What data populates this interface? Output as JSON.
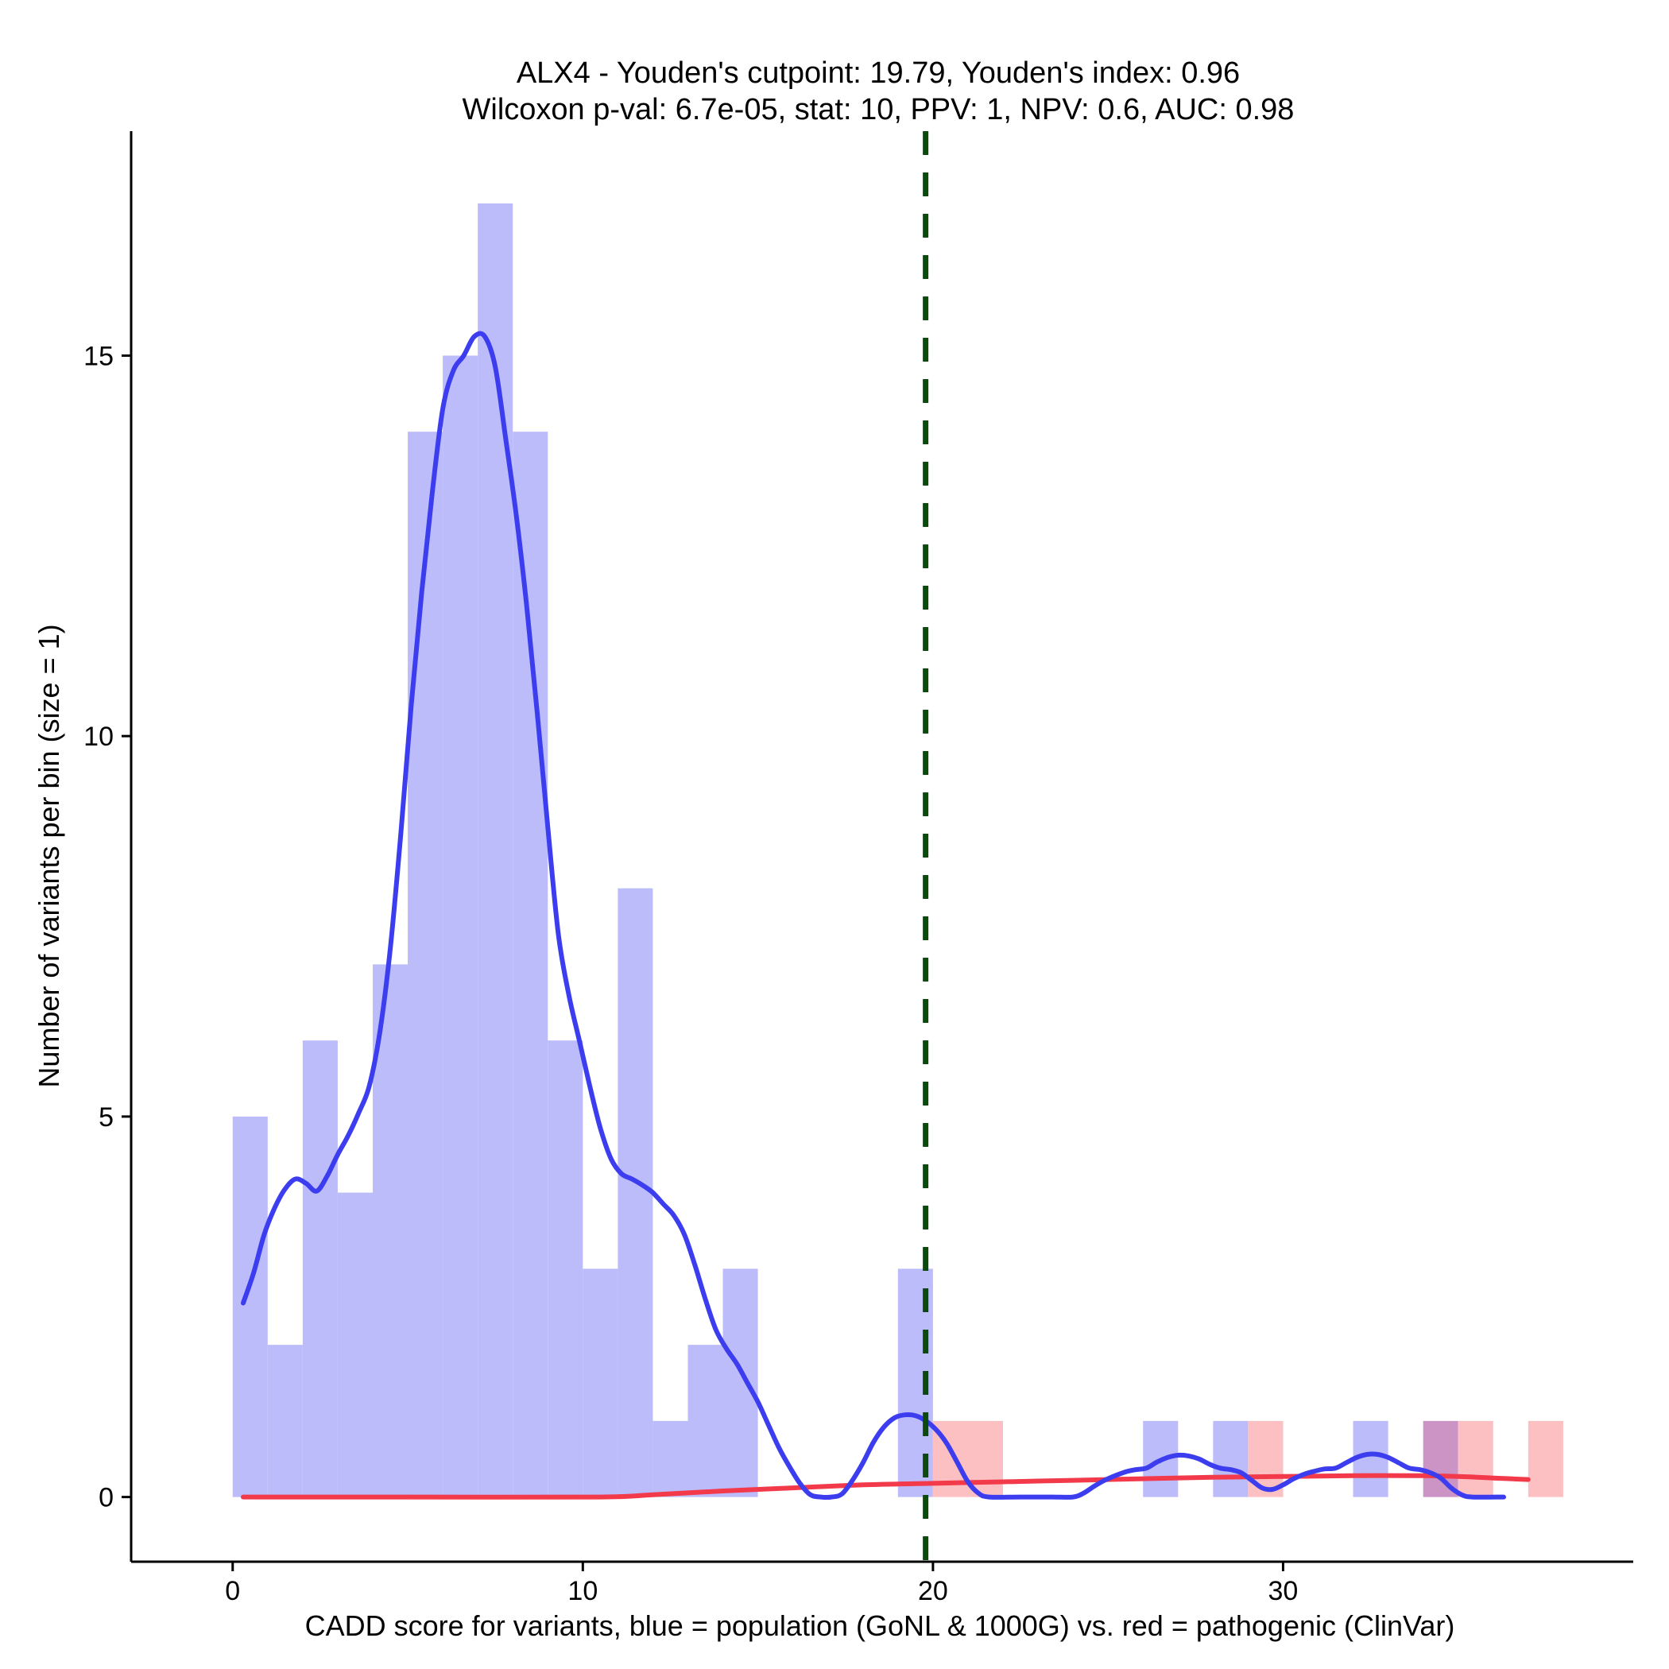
{
  "colors": {
    "population_fill": "#bcbcfb",
    "pathogenic_fill": "#fcc0c2",
    "overlap_fill": "#cc94c5",
    "population_line": "#3d3df0",
    "pathogenic_line": "#f23a4b",
    "cutpoint_line": "#0a4a0a"
  },
  "chart_data": {
    "type": "histogram",
    "title": "ALX4 - Youden's cutpoint: 19.79, Youden's index: 0.96",
    "subtitle": "Wilcoxon p-val: 6.7e-05, stat: 10, PPV: 1, NPV: 0.6, AUC: 0.98",
    "xlabel": "CADD score for variants, blue = population (GoNL & 1000G) vs. red = pathogenic (ClinVar)",
    "ylabel": "Number of variants per bin (size = 1)",
    "xlim": [
      -2.9,
      40.0
    ],
    "ylim": [
      -0.85,
      17.95
    ],
    "bin_size": 1,
    "x_ticks": [
      0,
      10,
      20,
      30
    ],
    "x_tick_labels": [
      "0",
      "10",
      "20",
      "30"
    ],
    "y_ticks": [
      0,
      5,
      10,
      15
    ],
    "y_tick_labels": [
      "0",
      "5",
      "10",
      "15"
    ],
    "cutpoint": 19.79,
    "series": [
      {
        "name": "population (GoNL & 1000G)",
        "bins": [
          {
            "x": 0,
            "count": 5
          },
          {
            "x": 1,
            "count": 2
          },
          {
            "x": 2,
            "count": 6
          },
          {
            "x": 3,
            "count": 4
          },
          {
            "x": 4,
            "count": 7
          },
          {
            "x": 5,
            "count": 14
          },
          {
            "x": 6,
            "count": 15
          },
          {
            "x": 7,
            "count": 17
          },
          {
            "x": 8,
            "count": 14
          },
          {
            "x": 9,
            "count": 6
          },
          {
            "x": 10,
            "count": 3
          },
          {
            "x": 11,
            "count": 8
          },
          {
            "x": 12,
            "count": 1
          },
          {
            "x": 13,
            "count": 2
          },
          {
            "x": 14,
            "count": 3
          },
          {
            "x": 19,
            "count": 3
          },
          {
            "x": 26,
            "count": 1
          },
          {
            "x": 28,
            "count": 1
          },
          {
            "x": 32,
            "count": 1
          },
          {
            "x": 34,
            "count": 1
          }
        ],
        "density": [
          [
            0.3,
            2.55
          ],
          [
            0.6,
            2.95
          ],
          [
            0.9,
            3.45
          ],
          [
            1.2,
            3.8
          ],
          [
            1.5,
            4.05
          ],
          [
            1.8,
            4.18
          ],
          [
            2.1,
            4.12
          ],
          [
            2.4,
            4.02
          ],
          [
            2.7,
            4.22
          ],
          [
            3.0,
            4.5
          ],
          [
            3.3,
            4.75
          ],
          [
            3.6,
            5.05
          ],
          [
            3.9,
            5.4
          ],
          [
            4.2,
            6.1
          ],
          [
            4.5,
            7.2
          ],
          [
            4.8,
            8.7
          ],
          [
            5.1,
            10.4
          ],
          [
            5.4,
            11.9
          ],
          [
            5.7,
            13.2
          ],
          [
            6.0,
            14.3
          ],
          [
            6.3,
            14.8
          ],
          [
            6.6,
            15.0
          ],
          [
            6.9,
            15.25
          ],
          [
            7.2,
            15.25
          ],
          [
            7.5,
            14.85
          ],
          [
            7.8,
            13.9
          ],
          [
            8.1,
            12.9
          ],
          [
            8.4,
            11.7
          ],
          [
            8.7,
            10.3
          ],
          [
            9.0,
            8.8
          ],
          [
            9.3,
            7.4
          ],
          [
            9.6,
            6.6
          ],
          [
            9.9,
            6.0
          ],
          [
            10.2,
            5.4
          ],
          [
            10.5,
            4.85
          ],
          [
            10.8,
            4.45
          ],
          [
            11.1,
            4.25
          ],
          [
            11.4,
            4.18
          ],
          [
            11.7,
            4.1
          ],
          [
            12.0,
            4.0
          ],
          [
            12.3,
            3.85
          ],
          [
            12.6,
            3.7
          ],
          [
            12.9,
            3.45
          ],
          [
            13.2,
            3.05
          ],
          [
            13.5,
            2.6
          ],
          [
            13.8,
            2.2
          ],
          [
            14.1,
            1.95
          ],
          [
            14.4,
            1.75
          ],
          [
            14.7,
            1.5
          ],
          [
            15.0,
            1.25
          ],
          [
            15.3,
            0.95
          ],
          [
            15.6,
            0.65
          ],
          [
            15.9,
            0.4
          ],
          [
            16.2,
            0.18
          ],
          [
            16.5,
            0.03
          ],
          [
            16.8,
            0.0
          ],
          [
            17.1,
            0.0
          ],
          [
            17.4,
            0.04
          ],
          [
            17.7,
            0.22
          ],
          [
            18.0,
            0.45
          ],
          [
            18.3,
            0.72
          ],
          [
            18.6,
            0.92
          ],
          [
            18.9,
            1.04
          ],
          [
            19.2,
            1.08
          ],
          [
            19.5,
            1.07
          ],
          [
            19.8,
            1.0
          ],
          [
            20.1,
            0.88
          ],
          [
            20.4,
            0.7
          ],
          [
            20.7,
            0.45
          ],
          [
            21.0,
            0.2
          ],
          [
            21.3,
            0.05
          ],
          [
            21.6,
            0.0
          ],
          [
            22.5,
            0.0
          ],
          [
            23.4,
            0.0
          ],
          [
            24.0,
            0.0
          ],
          [
            24.3,
            0.05
          ],
          [
            24.6,
            0.14
          ],
          [
            24.9,
            0.22
          ],
          [
            25.2,
            0.28
          ],
          [
            25.5,
            0.33
          ],
          [
            25.8,
            0.36
          ],
          [
            26.1,
            0.38
          ],
          [
            26.4,
            0.46
          ],
          [
            26.7,
            0.52
          ],
          [
            27.0,
            0.55
          ],
          [
            27.3,
            0.54
          ],
          [
            27.6,
            0.5
          ],
          [
            27.9,
            0.43
          ],
          [
            28.2,
            0.38
          ],
          [
            28.5,
            0.36
          ],
          [
            28.8,
            0.32
          ],
          [
            29.1,
            0.22
          ],
          [
            29.4,
            0.12
          ],
          [
            29.7,
            0.1
          ],
          [
            30.0,
            0.16
          ],
          [
            30.3,
            0.24
          ],
          [
            30.6,
            0.3
          ],
          [
            30.9,
            0.34
          ],
          [
            31.2,
            0.37
          ],
          [
            31.5,
            0.38
          ],
          [
            31.8,
            0.45
          ],
          [
            32.1,
            0.52
          ],
          [
            32.4,
            0.56
          ],
          [
            32.7,
            0.56
          ],
          [
            33.0,
            0.52
          ],
          [
            33.3,
            0.45
          ],
          [
            33.6,
            0.38
          ],
          [
            33.9,
            0.36
          ],
          [
            34.2,
            0.32
          ],
          [
            34.5,
            0.25
          ],
          [
            34.8,
            0.12
          ],
          [
            35.1,
            0.03
          ],
          [
            35.4,
            0.0
          ],
          [
            36.3,
            0.0
          ]
        ]
      },
      {
        "name": "pathogenic (ClinVar)",
        "bins": [
          {
            "x": 20,
            "count": 1
          },
          {
            "x": 21,
            "count": 1
          },
          {
            "x": 29,
            "count": 1
          },
          {
            "x": 34,
            "count": 1
          },
          {
            "x": 35,
            "count": 1
          },
          {
            "x": 37,
            "count": 1
          }
        ],
        "density": [
          [
            0.3,
            0.0
          ],
          [
            5.0,
            0.0
          ],
          [
            10.5,
            0.0
          ],
          [
            12.0,
            0.03
          ],
          [
            14.0,
            0.08
          ],
          [
            16.0,
            0.12
          ],
          [
            18.0,
            0.16
          ],
          [
            20.0,
            0.18
          ],
          [
            22.0,
            0.2
          ],
          [
            24.0,
            0.22
          ],
          [
            26.0,
            0.24
          ],
          [
            28.0,
            0.26
          ],
          [
            30.0,
            0.27
          ],
          [
            32.0,
            0.28
          ],
          [
            34.0,
            0.28
          ],
          [
            35.0,
            0.27
          ],
          [
            36.0,
            0.25
          ],
          [
            37.0,
            0.23
          ]
        ]
      }
    ]
  }
}
